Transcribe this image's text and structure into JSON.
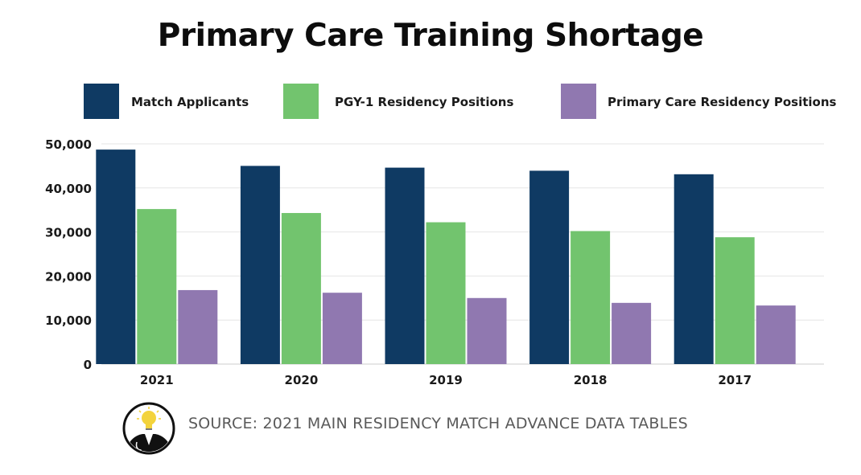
{
  "colors": {
    "match": "#0f3a63",
    "pgy1": "#72c46e",
    "primary": "#9078b0",
    "grid": "#e6e6e6",
    "text": "#1b1b1b"
  },
  "source_text": "SOURCE: 2021 MAIN RESIDENCY MATCH ADVANCE DATA TABLES",
  "logo_icon": "doctor-lightbulb-logo-icon",
  "chart_data": {
    "type": "bar",
    "title": "Primary Care Training Shortage",
    "categories": [
      "2021",
      "2020",
      "2019",
      "2018",
      "2017"
    ],
    "series": [
      {
        "name": "Match Applicants",
        "values": [
          48700,
          45000,
          44600,
          43900,
          43100
        ]
      },
      {
        "name": "PGY-1 Residency Positions",
        "values": [
          35200,
          34300,
          32200,
          30200,
          28800
        ]
      },
      {
        "name": "Primary Care Residency Positions",
        "values": [
          16800,
          16200,
          15000,
          13900,
          13300
        ]
      }
    ],
    "yticks": [
      "0",
      "10,000",
      "20,000",
      "30,000",
      "40,000",
      "50,000"
    ],
    "ylim": [
      0,
      50000
    ],
    "xlabel": "",
    "ylabel": "",
    "grid": true,
    "legend": "top"
  }
}
